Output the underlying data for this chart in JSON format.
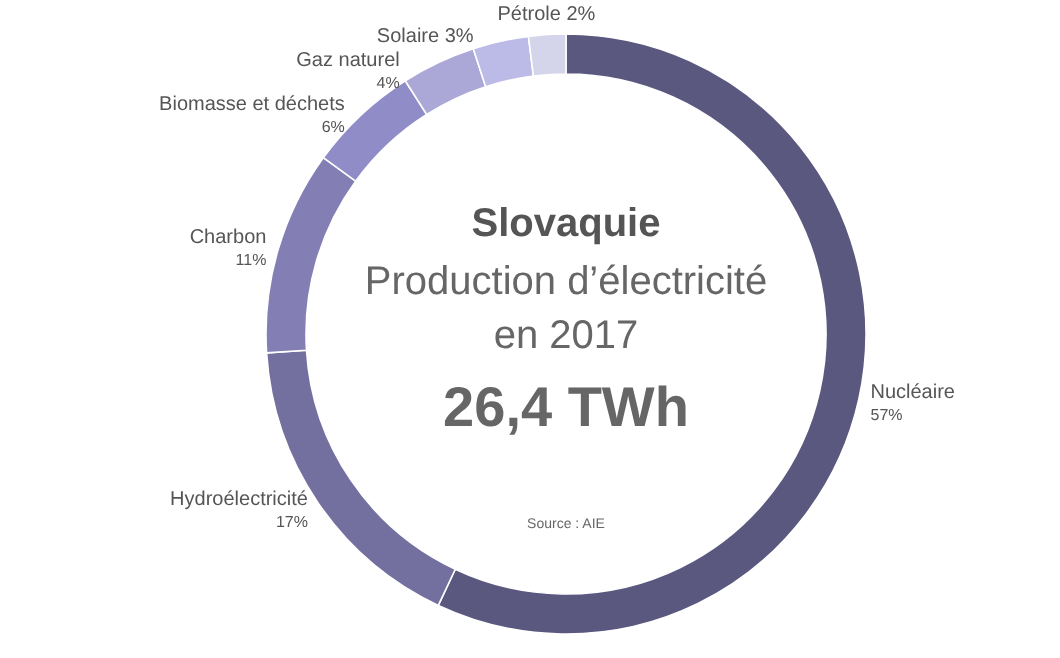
{
  "chart_data": {
    "type": "donut",
    "title": "Slovaquie",
    "categories": [
      "Nucléaire",
      "Hydroélectricité",
      "Charbon",
      "Biomasse et déchets",
      "Gaz naturel",
      "Solaire",
      "Pétrole"
    ],
    "values": [
      57,
      17,
      11,
      6,
      4,
      3,
      2
    ],
    "value_labels": [
      "57%",
      "17%",
      "11%",
      "6%",
      "4%",
      "3%",
      "2%"
    ],
    "colors": [
      "#5b5880",
      "#7370a0",
      "#837fb5",
      "#8f8cc7",
      "#aba7d6",
      "#bcbbe8",
      "#d4d4ea"
    ],
    "annotations": [
      "Production d’électricité",
      "en 2017",
      "26,4 TWh",
      "Source : AIE"
    ]
  }
}
